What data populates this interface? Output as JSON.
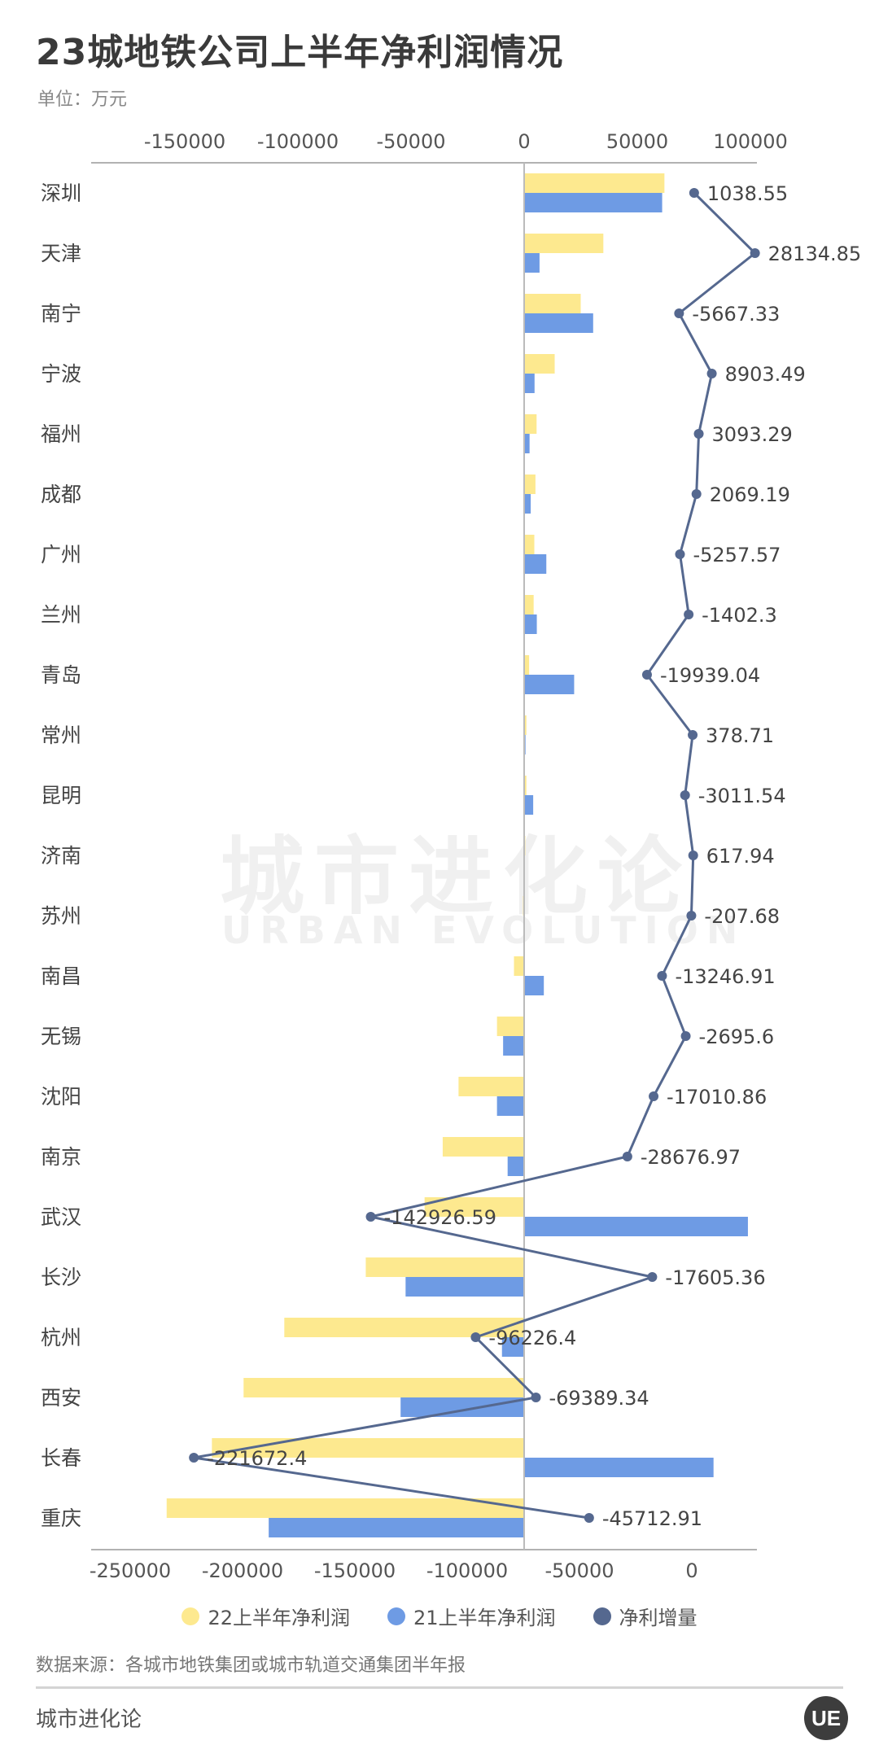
{
  "header": {
    "title": "23城地铁公司上半年净利润情况",
    "unit": "单位：万元"
  },
  "watermark": {
    "cn": "城市进化论",
    "en": "URBAN EVOLUTION"
  },
  "legend": [
    {
      "label": "22上半年净利润",
      "color": "#fde98f"
    },
    {
      "label": "21上半年净利润",
      "color": "#6e9be4"
    },
    {
      "label": "净利增量",
      "color": "#55688f"
    }
  ],
  "footer": {
    "source": "数据来源：各城市地铁集团或城市轨道交通集团半年报",
    "brand": "城市进化论",
    "logo": "UE"
  },
  "chart_data": {
    "type": "bar",
    "orientation": "horizontal",
    "categories": [
      "深圳",
      "天津",
      "南宁",
      "宁波",
      "福州",
      "成都",
      "广州",
      "兰州",
      "青岛",
      "常州",
      "昆明",
      "济南",
      "苏州",
      "南昌",
      "无锡",
      "沈阳",
      "南京",
      "武汉",
      "长沙",
      "杭州",
      "西安",
      "长春",
      "重庆"
    ],
    "top_axis": {
      "ticks": [
        -150000,
        -100000,
        -50000,
        0,
        50000,
        100000
      ],
      "tick_labels": [
        "-150000",
        "-100000",
        "-50000",
        "0",
        "50000",
        "100000"
      ],
      "range": [
        -190000,
        100000
      ]
    },
    "bottom_axis": {
      "ticks": [
        -250000,
        -200000,
        -150000,
        -100000,
        -50000,
        0
      ],
      "tick_labels": [
        "-250000",
        "-200000",
        "-150000",
        "-100000",
        "-50000",
        "0"
      ],
      "range": [
        -250000,
        20000
      ]
    },
    "series": [
      {
        "name": "22上半年净利润",
        "color": "#fde98f",
        "axis": "top",
        "values": [
          62000,
          35000,
          25000,
          13500,
          5500,
          5000,
          4500,
          4200,
          2200,
          1000,
          1000,
          500,
          -500,
          -4500,
          -12000,
          -29000,
          -36000,
          -44000,
          -70000,
          -106000,
          -124000,
          -138000,
          -158000
        ]
      },
      {
        "name": "21上半年净利润",
        "color": "#6e9be4",
        "axis": "top",
        "values": [
          61000,
          6800,
          30500,
          4600,
          2400,
          2900,
          9800,
          5600,
          22100,
          600,
          4000,
          -100,
          -300,
          8700,
          -9300,
          -12000,
          -7300,
          98900,
          -52400,
          -9800,
          -54600,
          83700,
          -112900
        ]
      },
      {
        "name": "净利增量",
        "color": "#55688f",
        "axis": "bottom",
        "values": [
          1038.55,
          28134.85,
          -5667.33,
          8903.49,
          3093.29,
          2069.19,
          -5257.57,
          -1402.3,
          -19939.04,
          378.71,
          -3011.54,
          617.94,
          -207.68,
          -13246.91,
          -2695.6,
          -17010.86,
          -28676.97,
          -142926.59,
          -17605.36,
          -96226.4,
          -69389.34,
          -221672.4,
          -45712.91
        ],
        "labels": [
          "1038.55",
          "28134.85",
          "-5667.33",
          "8903.49",
          "3093.29",
          "2069.19",
          "-5257.57",
          "-1402.3",
          "-19939.04",
          "378.71",
          "-3011.54",
          "617.94",
          "-207.68",
          "-13246.91",
          "-2695.6",
          "-17010.86",
          "-28676.97",
          "-142926.59",
          "-17605.36",
          "-96226.4",
          "-69389.34",
          "-221672.4",
          "-45712.91"
        ]
      }
    ],
    "grid": false,
    "legend_position": "bottom"
  }
}
